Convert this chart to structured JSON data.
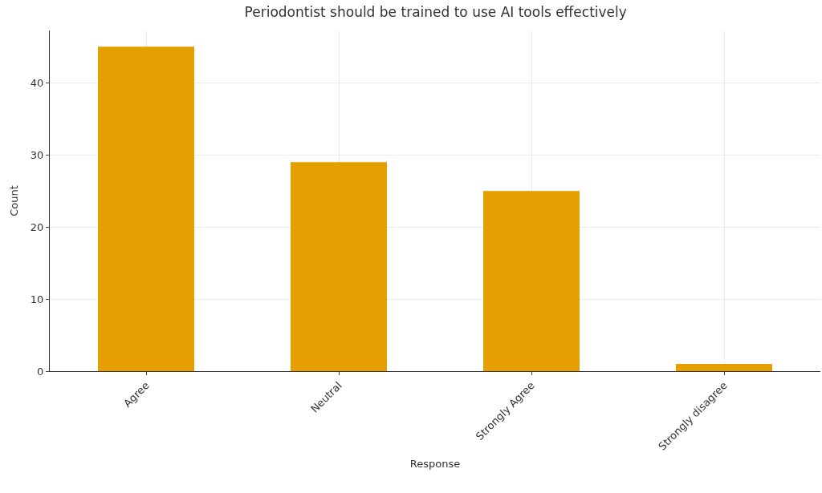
{
  "chart_data": {
    "type": "bar",
    "title": "Periodontist should be trained to use AI tools effectively",
    "xlabel": "Response",
    "ylabel": "Count",
    "categories": [
      "Agree",
      "Neutral",
      "Strongly Agree",
      "Strongly disagree"
    ],
    "values": [
      45,
      29,
      25,
      1
    ],
    "color": "#e69f00",
    "ylim": [
      0,
      47.25
    ],
    "yticks": [
      0,
      10,
      20,
      30,
      40
    ],
    "grid": true
  }
}
